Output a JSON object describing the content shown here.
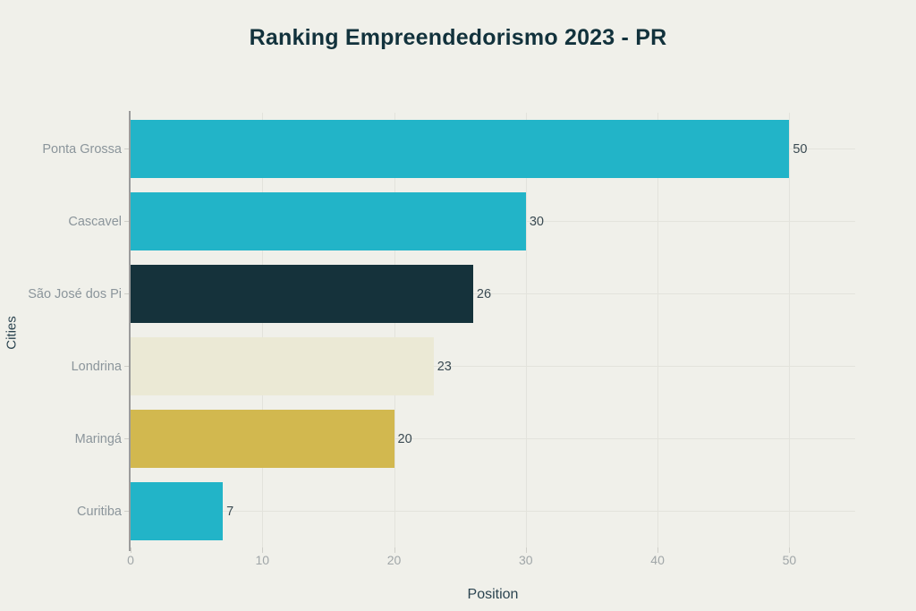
{
  "chart_data": {
    "type": "bar",
    "orientation": "horizontal",
    "title": "Ranking Empreendedorismo 2023 - PR",
    "xlabel": "Position",
    "ylabel": "Cities",
    "categories": [
      "Ponta Grossa",
      "Cascavel",
      "São José dos Pi",
      "Londrina",
      "Maringá",
      "Curitiba"
    ],
    "values": [
      50,
      30,
      26,
      23,
      20,
      7
    ],
    "bar_colors": [
      "#22b4c8",
      "#22b4c8",
      "#15323b",
      "#ebe9d5",
      "#d2b84f",
      "#22b4c8"
    ],
    "value_labels": [
      "50",
      "30",
      "26",
      "23",
      "20",
      "7"
    ],
    "x_ticks": [
      0,
      10,
      20,
      30,
      40,
      50
    ],
    "xlim": [
      0,
      55
    ],
    "grid": true,
    "legend": false
  },
  "colors": {
    "background": "#f0f0ea",
    "title": "#12323c",
    "axis_title": "#2b4450",
    "category_label": "#8b959b",
    "tick_label": "#a0a6a8",
    "value_label": "#3a4a52",
    "gridline": "#e3e3dc",
    "axis_line": "#9b9b9b",
    "tick_mark": "#cfcfc9"
  }
}
